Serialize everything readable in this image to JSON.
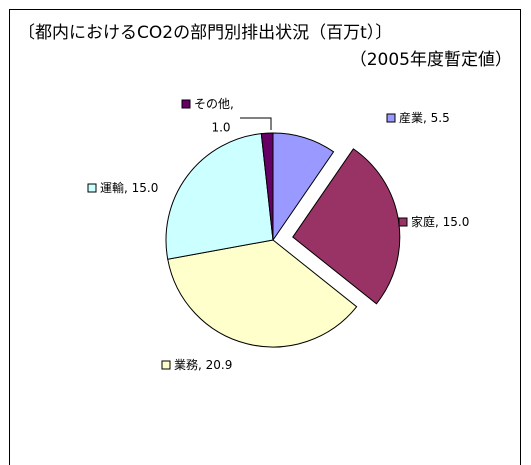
{
  "chart_data": {
    "type": "pie",
    "title": "〔都内におけるCO2の部門別排出状況（百万t）〕",
    "subtitle": "（2005年度暫定値）",
    "categories": [
      "産業",
      "家庭",
      "業務",
      "運輸",
      "その他"
    ],
    "values": [
      5.5,
      15,
      20.9,
      15,
      1
    ],
    "value_labels": [
      "5.5",
      "15.0",
      "20.9",
      "15.0",
      "1.0"
    ],
    "label_separator": ", ",
    "colors": [
      "#9999ff",
      "#993366",
      "#ffffcc",
      "#ccffff",
      "#660066"
    ],
    "exploded": [
      false,
      true,
      false,
      false,
      false
    ]
  }
}
